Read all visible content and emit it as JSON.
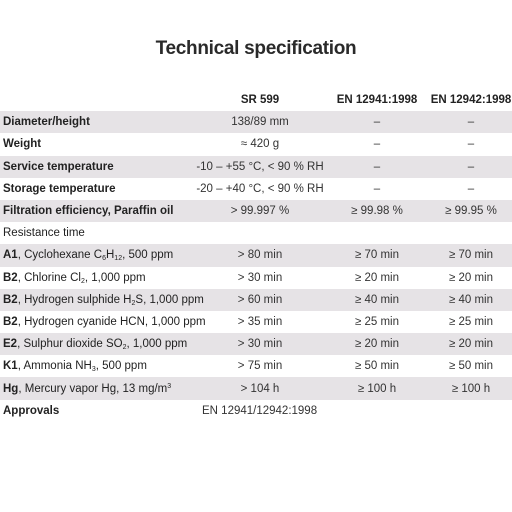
{
  "title": "Technical specification",
  "columns": [
    "",
    "SR 599",
    "EN 12941:1998",
    "EN 12942:1998"
  ],
  "rows": [
    {
      "label": "Diameter/height",
      "bold": true,
      "shaded": true,
      "values": [
        "138/89 mm",
        "–",
        "–"
      ]
    },
    {
      "label": "Weight",
      "bold": true,
      "shaded": false,
      "values": [
        "≈ 420 g",
        "–",
        "–"
      ]
    },
    {
      "label": "Service temperature",
      "bold": true,
      "shaded": true,
      "values": [
        "-10 – +55 °C, < 90 % RH",
        "–",
        "–"
      ]
    },
    {
      "label": "Storage temperature",
      "bold": true,
      "shaded": false,
      "values": [
        "-20 – +40 °C, < 90 % RH",
        "–",
        "–"
      ]
    },
    {
      "label": "Filtration efficiency, Paraffin oil",
      "bold": true,
      "shaded": true,
      "values": [
        "> 99.997 %",
        "≥ 99.98 %",
        "≥ 99.95 %"
      ]
    },
    {
      "label": "Resistance time",
      "bold": false,
      "shaded": false,
      "values": [
        "",
        "",
        ""
      ]
    }
  ],
  "resistance_rows": [
    {
      "code": "A1",
      "text_a": "Cyclohexane C",
      "sub1": "6",
      "text_b": "H",
      "sub2": "12",
      "text_c": ", 500 ppm",
      "shaded": true,
      "values": [
        "> 80 min",
        "≥ 70 min",
        "≥ 70 min"
      ]
    },
    {
      "code": "B2",
      "text_a": "Chlorine Cl",
      "sub1": "2",
      "text_b": ", 1,000 ppm",
      "shaded": false,
      "values": [
        "> 30 min",
        "≥ 20 min",
        "≥ 20 min"
      ]
    },
    {
      "code": "B2",
      "text_a": "Hydrogen sulphide H",
      "sub1": "2",
      "text_b": "S, 1,000 ppm",
      "shaded": true,
      "values": [
        "> 60 min",
        "≥ 40 min",
        "≥ 40 min"
      ]
    },
    {
      "code": "B2",
      "text_a": "Hydrogen cyanide HCN, 1,000 ppm",
      "shaded": false,
      "values": [
        "> 35 min",
        "≥ 25 min",
        "≥ 25 min"
      ]
    },
    {
      "code": "E2",
      "text_a": "Sulphur dioxide SO",
      "sub1": "2",
      "text_b": ", 1,000 ppm",
      "shaded": true,
      "values": [
        "> 30 min",
        "≥ 20 min",
        "≥ 20 min"
      ]
    },
    {
      "code": "K1",
      "text_a": "Ammonia NH",
      "sub1": "3",
      "text_b": ", 500 ppm",
      "shaded": false,
      "values": [
        "> 75 min",
        "≥ 50 min",
        "≥ 50 min"
      ]
    },
    {
      "code": "Hg",
      "text_a": "Mercury vapor Hg, 13 mg/m",
      "sup1": "3",
      "shaded": true,
      "values": [
        "> 104 h",
        "≥ 100 h",
        "≥ 100 h"
      ]
    }
  ],
  "approvals": {
    "label": "Approvals",
    "value": "EN 12941/12942:1998"
  },
  "colors": {
    "shade": "#e6e3e6",
    "text": "#222222"
  }
}
